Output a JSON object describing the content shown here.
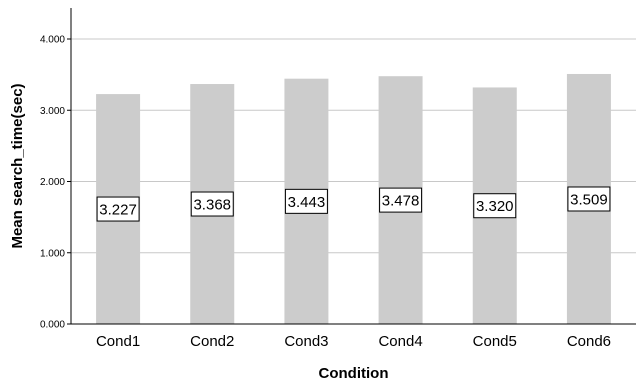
{
  "chart_data": {
    "type": "bar",
    "xlabel": "Condition",
    "ylabel": "Mean search_time(sec)",
    "categories": [
      "Cond1",
      "Cond2",
      "Cond3",
      "Cond4",
      "Cond5",
      "Cond6"
    ],
    "values": [
      3.227,
      3.368,
      3.443,
      3.478,
      3.32,
      3.509
    ],
    "data_labels": [
      "3.227",
      "3.368",
      "3.443",
      "3.478",
      "3.320",
      "3.509"
    ],
    "ylim": [
      0,
      4.4
    ],
    "yticks": [
      0,
      1,
      2,
      3,
      4
    ],
    "ytick_labels": [
      "0.000",
      "1.000",
      "2.000",
      "3.000",
      "4.000"
    ],
    "grid": true,
    "colors": {
      "bar": "#cccccc",
      "grid": "#c8c8c8",
      "axis": "#000000"
    }
  }
}
